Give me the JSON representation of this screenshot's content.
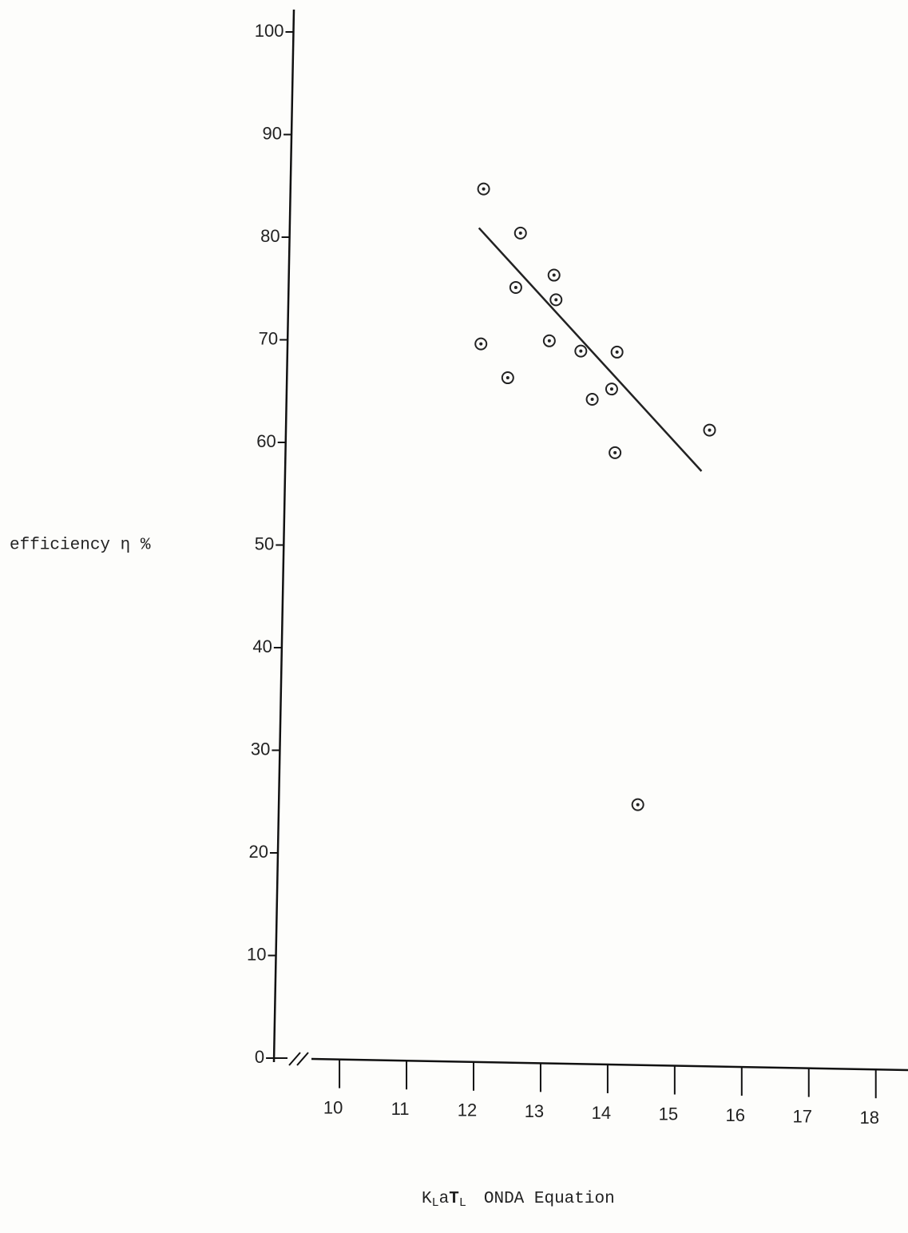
{
  "chart_data": {
    "type": "scatter",
    "y_label": "efficiency η %",
    "x_label": [
      "K",
      "L",
      "a",
      "T",
      "L",
      "ONDA Equation"
    ],
    "x": [
      12.15,
      12.7,
      13.2,
      12.63,
      13.23,
      12.11,
      13.13,
      13.6,
      14.14,
      12.51,
      14.06,
      13.77,
      15.52,
      14.11,
      14.45
    ],
    "values": [
      84.7,
      80.4,
      76.3,
      75.1,
      73.9,
      69.6,
      69.9,
      68.9,
      68.8,
      66.3,
      65.2,
      64.2,
      61.2,
      59.0,
      24.7
    ],
    "color": "#222222",
    "fit_line": {
      "x": [
        12.08,
        15.4
      ],
      "values": [
        80.9,
        57.2
      ]
    },
    "xlim": [
      9.32,
      18.48
    ],
    "ylim": [
      0,
      100
    ],
    "xticks": [
      10,
      11,
      12,
      13,
      14,
      15,
      16,
      17,
      18
    ],
    "yticks": [
      0,
      10,
      20,
      30,
      40,
      50,
      60,
      70,
      80,
      90,
      100
    ]
  }
}
